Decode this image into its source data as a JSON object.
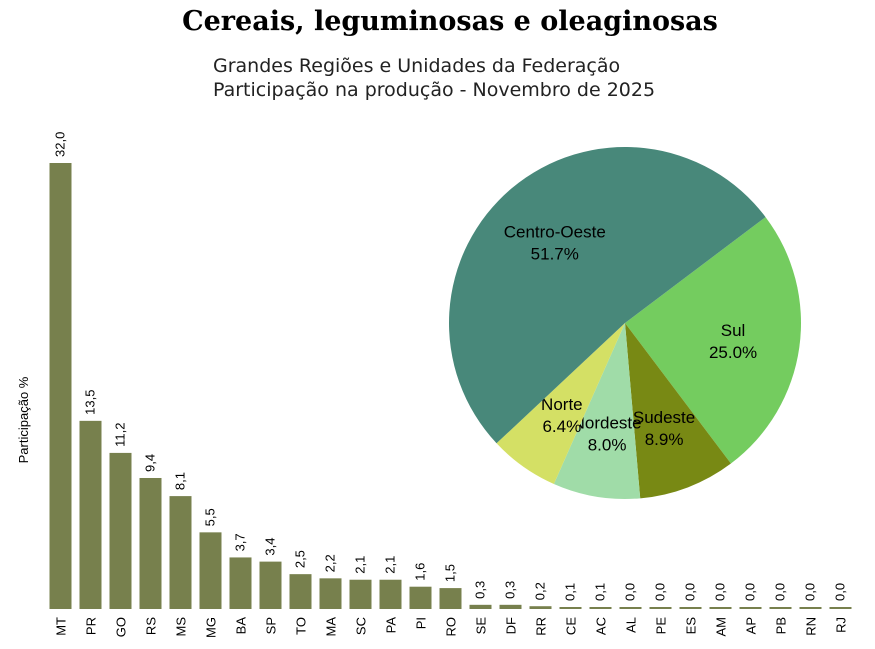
{
  "title": "Cereais, leguminosas e oleaginosas",
  "subtitle_line1": "Grandes Regiões e Unidades da Federação",
  "subtitle_line2": "Participação na produção - Novembro de 2025",
  "colors": {
    "bar": "#77804d",
    "centro_oeste": "#48887a",
    "sul": "#74cc5f",
    "sudeste": "#788914",
    "nordeste": "#a0dca8",
    "norte": "#d4e065"
  },
  "chart_data": [
    {
      "type": "bar",
      "ylabel": "Participação %",
      "categories": [
        "MT",
        "PR",
        "GO",
        "RS",
        "MS",
        "MG",
        "BA",
        "SP",
        "TO",
        "MA",
        "SC",
        "PA",
        "PI",
        "RO",
        "SE",
        "DF",
        "RR",
        "CE",
        "AC",
        "AL",
        "PE",
        "ES",
        "AM",
        "AP",
        "PB",
        "RN",
        "RJ"
      ],
      "values": [
        32.0,
        13.5,
        11.2,
        9.4,
        8.1,
        5.5,
        3.7,
        3.4,
        2.5,
        2.2,
        2.1,
        2.1,
        1.6,
        1.5,
        0.3,
        0.3,
        0.2,
        0.1,
        0.1,
        0.0,
        0.0,
        0.0,
        0.0,
        0.0,
        0.0,
        0.0,
        0.0
      ],
      "value_labels": [
        "32,0",
        "13,5",
        "11,2",
        "9,4",
        "8,1",
        "5,5",
        "3,7",
        "3,4",
        "2,5",
        "2,2",
        "2,1",
        "2,1",
        "1,6",
        "1,5",
        "0,3",
        "0,3",
        "0,2",
        "0,1",
        "0,1",
        "0,0",
        "0,0",
        "0,0",
        "0,0",
        "0,0",
        "0,0",
        "0,0",
        "0,0"
      ],
      "ylim": [
        0,
        32.0
      ],
      "grid": false,
      "legend": "none"
    },
    {
      "type": "pie",
      "slices": [
        {
          "name": "Sul",
          "value": 25.0,
          "label": "25.0%",
          "color": "#74cc5f"
        },
        {
          "name": "Sudeste",
          "value": 8.9,
          "label": "8.9%",
          "color": "#788914"
        },
        {
          "name": "Nordeste",
          "value": 8.0,
          "label": "8.0%",
          "color": "#a0dca8"
        },
        {
          "name": "Norte",
          "value": 6.4,
          "label": "6.4%",
          "color": "#d4e065"
        },
        {
          "name": "Centro-Oeste",
          "value": 51.7,
          "label": "51.7%",
          "color": "#48887a"
        }
      ],
      "start_angle_deg": 323,
      "direction": "clockwise"
    }
  ]
}
